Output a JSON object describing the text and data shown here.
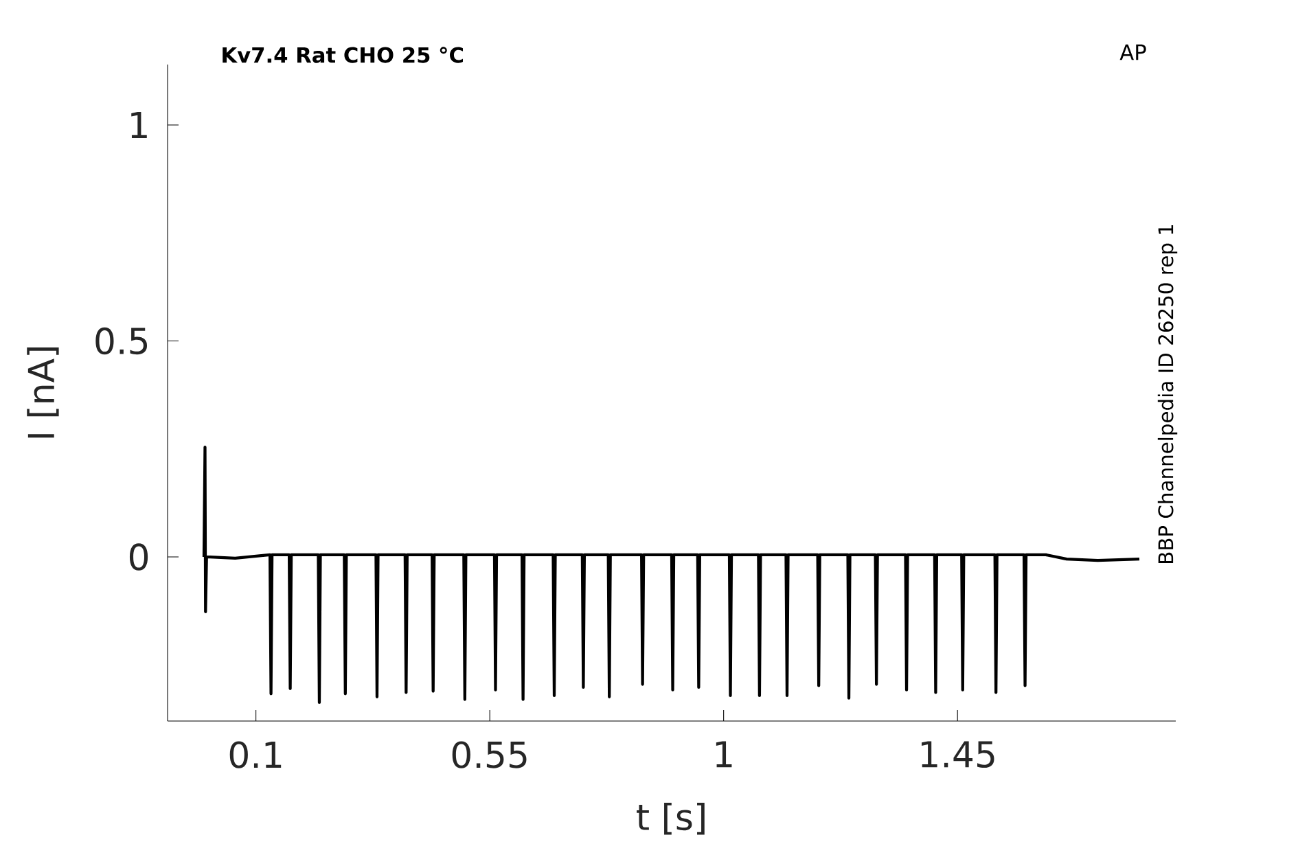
{
  "chart_data": {
    "type": "line",
    "title": "**Kv7.4  Rat  CHO  25 °C**",
    "xlabel": "t [s]",
    "ylabel": "I [nA]",
    "annotations": [
      "AP",
      "BBP Channelpedia ID 26250 rep 1"
    ],
    "xlim": [
      -0.07,
      1.87
    ],
    "ylim": [
      -0.38,
      1.14
    ],
    "xticks": [
      0.1,
      0.55,
      1,
      1.45
    ],
    "yticks": [
      0,
      0.5,
      1
    ],
    "grid": false,
    "marker": "none",
    "line_style": "solid",
    "series": [
      {
        "color": "#000000",
        "x": [
          0,
          0.002,
          0.003,
          0.005,
          0.06,
          0.127,
          0.129,
          0.131,
          0.164,
          0.166,
          0.168,
          0.22,
          0.222,
          0.224,
          0.27,
          0.272,
          0.274,
          0.331,
          0.333,
          0.335,
          0.387,
          0.389,
          0.391,
          0.439,
          0.441,
          0.443,
          0.5,
          0.502,
          0.504,
          0.559,
          0.561,
          0.563,
          0.612,
          0.614,
          0.616,
          0.672,
          0.674,
          0.676,
          0.728,
          0.73,
          0.732,
          0.778,
          0.78,
          0.782,
          0.842,
          0.844,
          0.846,
          0.9,
          0.902,
          0.904,
          0.95,
          0.952,
          0.954,
          1.011,
          1.013,
          1.015,
          1.067,
          1.069,
          1.071,
          1.12,
          1.122,
          1.124,
          1.181,
          1.183,
          1.185,
          1.239,
          1.241,
          1.243,
          1.292,
          1.294,
          1.296,
          1.35,
          1.352,
          1.354,
          1.406,
          1.408,
          1.41,
          1.458,
          1.46,
          1.462,
          1.522,
          1.524,
          1.526,
          1.578,
          1.58,
          1.582,
          1.62,
          1.66,
          1.72,
          1.8
        ],
        "values": [
          0,
          0.254,
          -0.127,
          0,
          -0.003,
          0.005,
          -0.317,
          0.005,
          0.005,
          -0.305,
          0.005,
          0.005,
          -0.337,
          0.005,
          0.005,
          -0.317,
          0.005,
          0.005,
          -0.324,
          0.005,
          0.005,
          -0.314,
          0.005,
          0.005,
          -0.311,
          0.005,
          0.005,
          -0.33,
          0.005,
          0.005,
          -0.308,
          0.005,
          0.005,
          -0.33,
          0.005,
          0.005,
          -0.321,
          0.005,
          0.005,
          -0.302,
          0.005,
          0.005,
          -0.324,
          0.005,
          0.005,
          -0.295,
          0.005,
          0.005,
          -0.308,
          0.005,
          0.005,
          -0.302,
          0.005,
          0.005,
          -0.321,
          0.005,
          0.005,
          -0.321,
          0.005,
          0.005,
          -0.321,
          0.005,
          0.005,
          -0.298,
          0.005,
          0.005,
          -0.327,
          0.005,
          0.005,
          -0.295,
          0.005,
          0.005,
          -0.308,
          0.005,
          0.005,
          -0.314,
          0.005,
          0.005,
          -0.308,
          0.005,
          0.005,
          -0.314,
          0.005,
          0.005,
          -0.298,
          0.005,
          0.005,
          -0.005,
          -0.008,
          -0.005
        ]
      }
    ]
  }
}
